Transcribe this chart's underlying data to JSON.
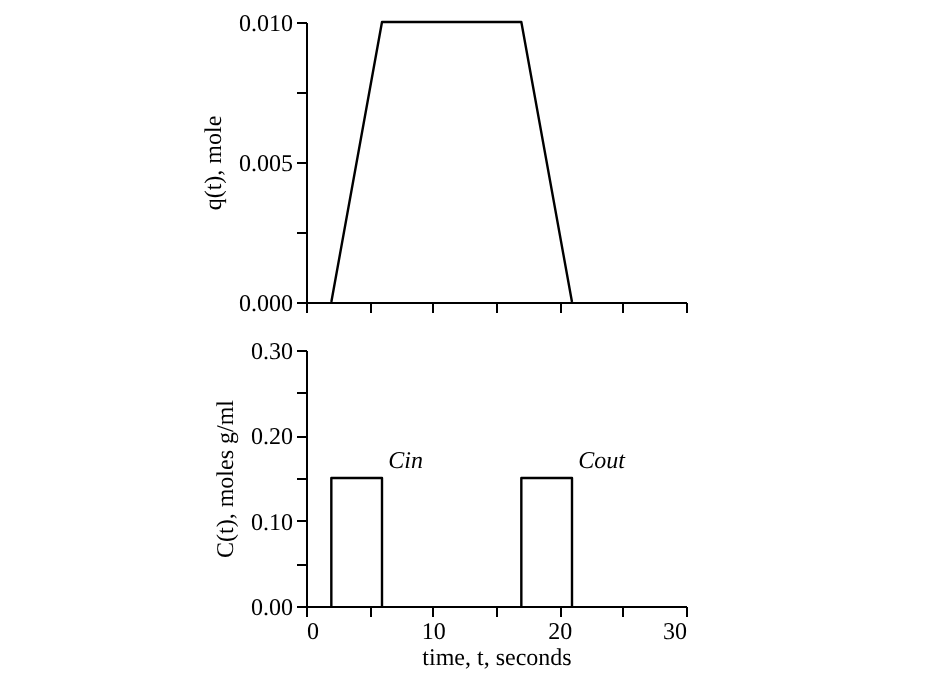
{
  "chart_data": [
    {
      "type": "line",
      "ylabel": "q(t), mole",
      "xlim": [
        0,
        30
      ],
      "ylim": [
        0,
        0.01
      ],
      "xticks": [
        {
          "value": 0,
          "label": null
        },
        {
          "value": 5,
          "label": null
        },
        {
          "value": 10,
          "label": null
        },
        {
          "value": 15,
          "label": null
        },
        {
          "value": 20,
          "label": null
        },
        {
          "value": 25,
          "label": null
        },
        {
          "value": 30,
          "label": null
        }
      ],
      "yticks": [
        {
          "value": 0,
          "label": "0.000"
        },
        {
          "value": 0.0025,
          "label": null
        },
        {
          "value": 0.005,
          "label": "0.005"
        },
        {
          "value": 0.0075,
          "label": null
        },
        {
          "value": 0.01,
          "label": "0.010"
        }
      ],
      "tick_labels": "y",
      "grid": false,
      "legend": false,
      "line_style": "solid",
      "marker": "none",
      "series": [
        {
          "color": "#000000",
          "x": [
            2,
            6,
            17,
            21
          ],
          "values": [
            0,
            0.01,
            0.01,
            0
          ]
        }
      ]
    },
    {
      "type": "line",
      "xlabel": "time, t, seconds",
      "ylabel": "C(t), moles g/ml",
      "xlim": [
        0,
        30
      ],
      "ylim": [
        0,
        0.3
      ],
      "xticks": [
        0,
        {
          "value": 5,
          "label": null
        },
        10,
        {
          "value": 15,
          "label": null
        },
        20,
        {
          "value": 25,
          "label": null
        },
        30
      ],
      "yticks": [
        {
          "value": 0,
          "label": "0.00"
        },
        {
          "value": 0.05,
          "label": null
        },
        {
          "value": 0.1,
          "label": "0.10"
        },
        {
          "value": 0.15,
          "label": null
        },
        {
          "value": 0.2,
          "label": "0.20"
        },
        {
          "value": 0.25,
          "label": null
        },
        {
          "value": 0.3,
          "label": "0.30"
        }
      ],
      "grid": false,
      "legend": false,
      "line_style": "solid",
      "marker": "none",
      "annotations": [
        {
          "text": "Cin",
          "x": 6.5,
          "y": 0.15
        },
        {
          "text": "Cout",
          "x": 21.5,
          "y": 0.15
        }
      ],
      "series": [
        {
          "color": "#000000",
          "x": [
            2,
            2,
            6,
            6
          ],
          "values": [
            0,
            0.15,
            0.15,
            0
          ]
        },
        {
          "color": "#000000",
          "x": [
            17,
            17,
            21,
            21
          ],
          "values": [
            0,
            0.15,
            0.15,
            0
          ]
        }
      ]
    }
  ]
}
